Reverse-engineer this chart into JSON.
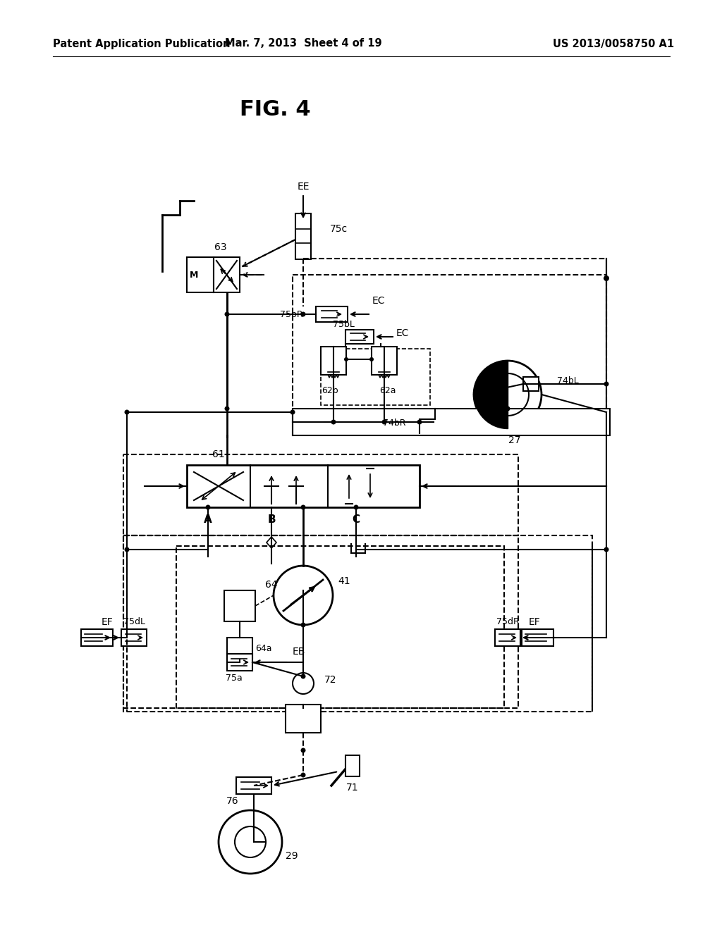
{
  "title": "FIG. 4",
  "header_left": "Patent Application Publication",
  "header_center": "Mar. 7, 2013  Sheet 4 of 19",
  "header_right": "US 2013/0058750 A1",
  "bg_color": "#ffffff"
}
